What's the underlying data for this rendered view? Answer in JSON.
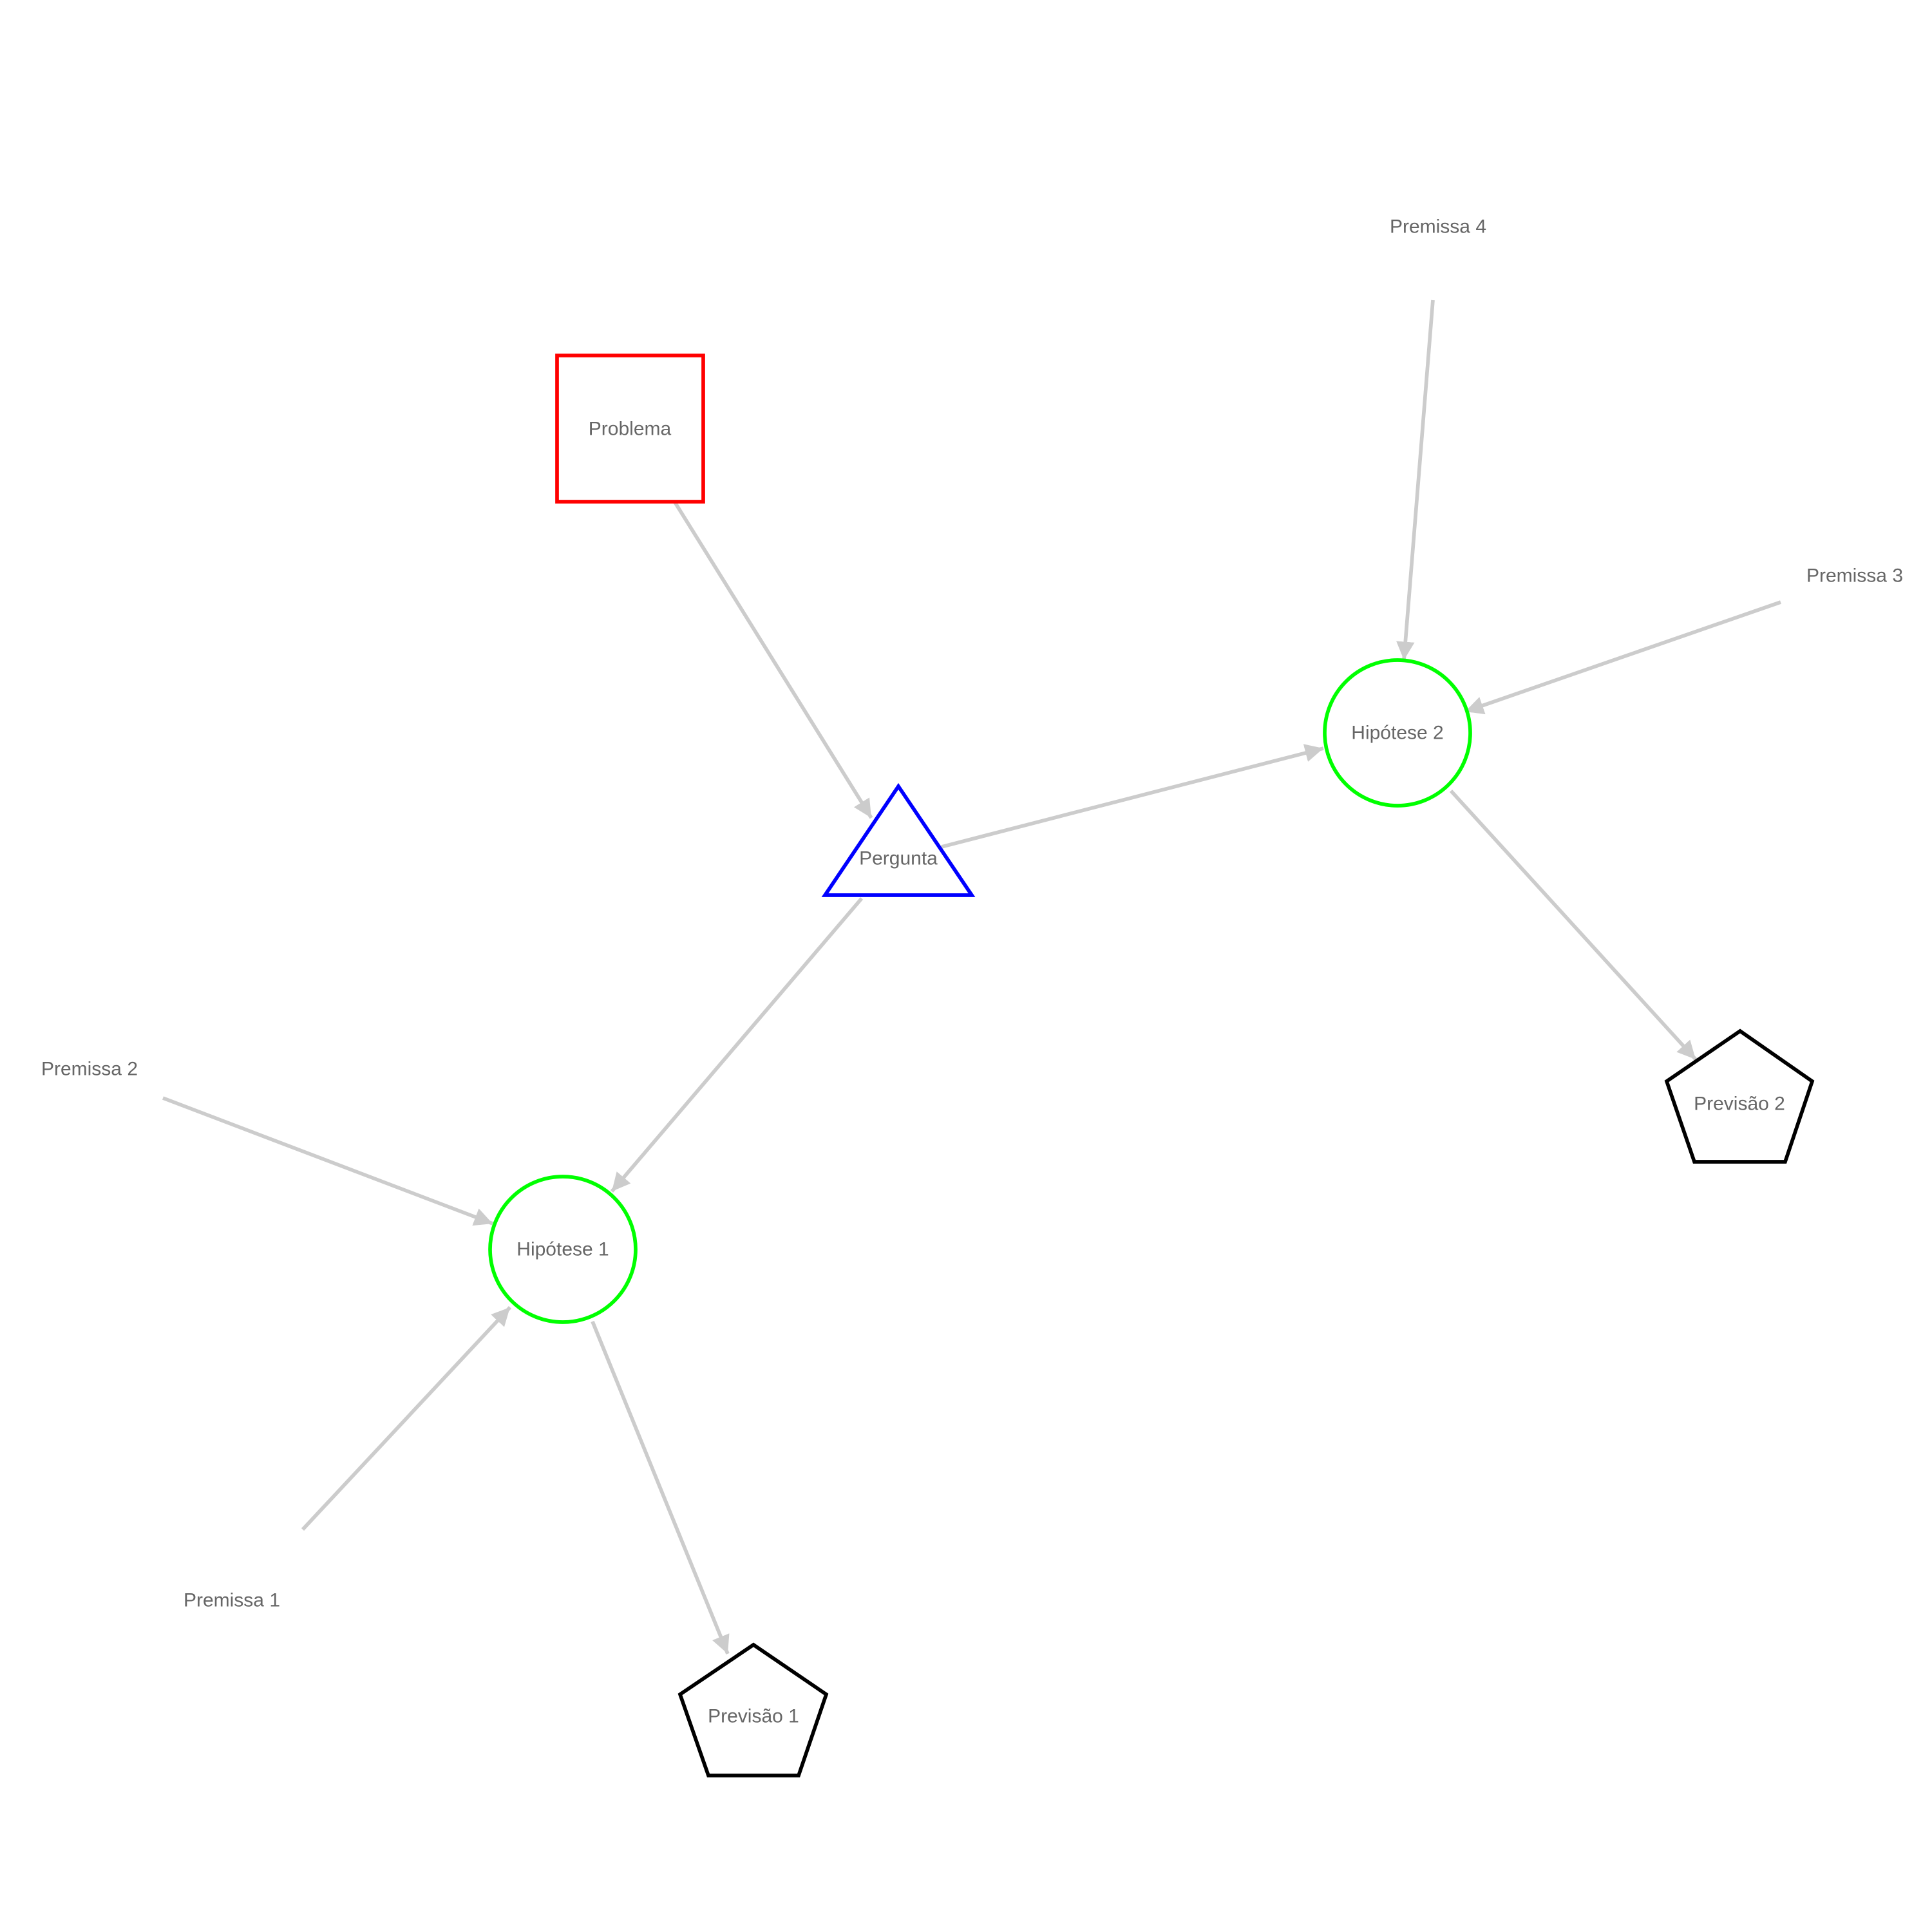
{
  "diagram": {
    "nodes": {
      "problema": {
        "label": "Problema",
        "shape": "square",
        "stroke": "#ff0000"
      },
      "pergunta": {
        "label": "Pergunta",
        "shape": "triangle",
        "stroke": "#0000ff"
      },
      "hipotese1": {
        "label": "Hipótese 1",
        "shape": "circle",
        "stroke": "#00ff00"
      },
      "hipotese2": {
        "label": "Hipótese 2",
        "shape": "circle",
        "stroke": "#00ff00"
      },
      "previsao1": {
        "label": "Previsão 1",
        "shape": "pentagon",
        "stroke": "#000000"
      },
      "previsao2": {
        "label": "Previsão 2",
        "shape": "pentagon",
        "stroke": "#000000"
      },
      "premissa1": {
        "label": "Premissa 1",
        "shape": "none"
      },
      "premissa2": {
        "label": "Premissa 2",
        "shape": "none"
      },
      "premissa3": {
        "label": "Premissa 3",
        "shape": "none"
      },
      "premissa4": {
        "label": "Premissa 4",
        "shape": "none"
      }
    },
    "edges": [
      {
        "from": "problema",
        "to": "pergunta"
      },
      {
        "from": "pergunta",
        "to": "hipotese1"
      },
      {
        "from": "pergunta",
        "to": "hipotese2"
      },
      {
        "from": "premissa1",
        "to": "hipotese1"
      },
      {
        "from": "premissa2",
        "to": "hipotese1"
      },
      {
        "from": "premissa3",
        "to": "hipotese2"
      },
      {
        "from": "premissa4",
        "to": "hipotese2"
      },
      {
        "from": "hipotese1",
        "to": "previsao1"
      },
      {
        "from": "hipotese2",
        "to": "previsao2"
      }
    ],
    "edge_color": "#cccccc"
  }
}
